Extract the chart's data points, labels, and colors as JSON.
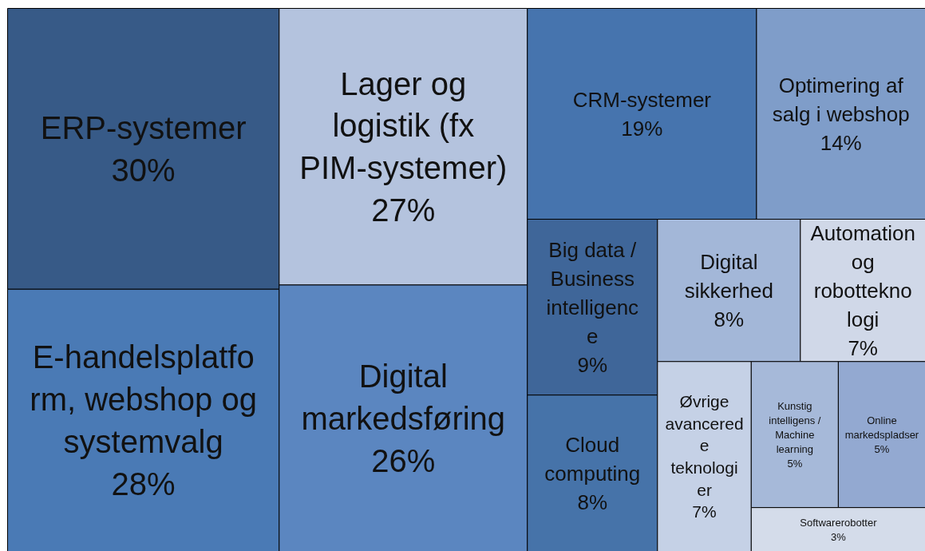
{
  "chart_data": {
    "type": "other",
    "categories": [
      "ERP-systemer",
      "E-handelsplatform, webshop og systemvalg",
      "Lager og logistik (fx PIM-systemer)",
      "Digital markedsføring",
      "CRM-systemer",
      "Optimering af salg i webshop",
      "Big data / Business intelligence",
      "Cloud computing",
      "Digital sikkerhed",
      "Automation og robotteknologi",
      "Øvrige avancerede teknologier",
      "Kunstig intelligens / Machine learning",
      "Online markedspladser",
      "Softwarerobotter"
    ],
    "values": [
      30,
      28,
      27,
      26,
      19,
      14,
      9,
      8,
      8,
      7,
      7,
      5,
      5,
      3
    ],
    "value_labels": [
      "30%",
      "28%",
      "27%",
      "26%",
      "19%",
      "14%",
      "9%",
      "8%",
      "8%",
      "7%",
      "7%",
      "5%",
      "5%",
      "3%"
    ],
    "colors": [
      "#375a87",
      "#4a7ab5",
      "#b4c3de",
      "#5b86c0",
      "#4674ae",
      "#7f9dc9",
      "#3f6699",
      "#4673a9",
      "#a3b7d8",
      "#d0d8e8",
      "#c5d1e6",
      "#a6b9d9",
      "#93a9d1",
      "#d4dcea"
    ],
    "data_labels": true
  }
}
